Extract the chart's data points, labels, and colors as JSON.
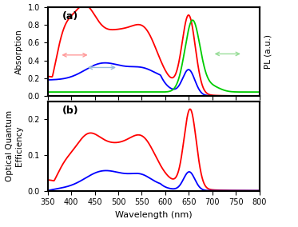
{
  "xlabel": "Wavelength (nm)",
  "ylabel_a": "Absorption",
  "ylabel_a_right": "PL (a.u.)",
  "ylabel_b": "Optical Quantum\nEfficiency",
  "label_a": "(a)",
  "label_b": "(b)",
  "xmin": 350,
  "xmax": 800,
  "ylim_a": [
    0,
    1.0
  ],
  "ylim_b": [
    0,
    0.25
  ],
  "yticks_a": [
    0,
    0.2,
    0.4,
    0.6,
    0.8,
    1.0
  ],
  "yticks_b": [
    0,
    0.1,
    0.2
  ],
  "red_color": "#ff0000",
  "blue_color": "#0000ff",
  "green_color": "#00cc00",
  "arrow_red_color": "#ff9999",
  "arrow_blue_color": "#99bbdd",
  "arrow_green_color": "#99dd99"
}
